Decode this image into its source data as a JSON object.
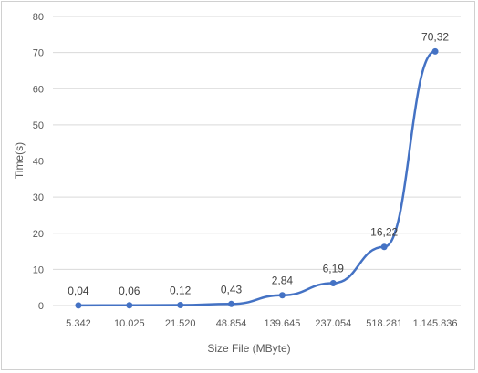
{
  "chart_data": {
    "type": "line",
    "categories": [
      "5.342",
      "10.025",
      "21.520",
      "48.854",
      "139.645",
      "237.054",
      "518.281",
      "1.145.836"
    ],
    "series": [
      {
        "values": [
          0.04,
          0.06,
          0.12,
          0.43,
          2.84,
          6.19,
          16.22,
          70.32
        ],
        "labels": [
          "0,04",
          "0,06",
          "0,12",
          "0,43",
          "2,84",
          "6,19",
          "16,22",
          "70,32"
        ]
      }
    ],
    "xlabel": "Size File (MByte)",
    "ylabel": "Time(s)",
    "ylim": [
      0,
      80
    ],
    "yticks": [
      "0",
      "10",
      "20",
      "30",
      "40",
      "50",
      "60",
      "70",
      "80"
    ],
    "grid": "horizontal",
    "legend": "none",
    "line_color": "#4472c4",
    "grid_color": "#d9d9d9"
  }
}
